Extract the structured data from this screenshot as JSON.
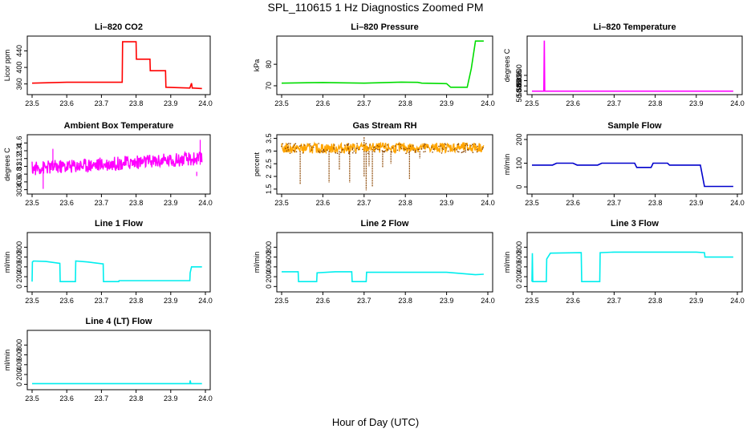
{
  "page": {
    "title": "SPL_110615  1 Hz Diagnostics Zoomed PM",
    "xlabel": "Hour of Day (UTC)"
  },
  "chart_data": [
    {
      "id": "co2",
      "type": "line",
      "title": "Li–820 CO2",
      "ylabel": "Licor ppm",
      "color": "#ff0000",
      "xlim": [
        23.5,
        24.0
      ],
      "ylim": [
        340,
        470
      ],
      "xticks": [
        23.5,
        23.6,
        23.7,
        23.8,
        23.9,
        24.0
      ],
      "yticks": [
        360,
        400,
        440
      ],
      "x": [
        23.5,
        23.6,
        23.76,
        23.761,
        23.8,
        23.801,
        23.84,
        23.841,
        23.885,
        23.886,
        23.955,
        23.96,
        23.962,
        23.965,
        23.99
      ],
      "y": [
        362,
        364,
        364,
        462,
        462,
        420,
        420,
        392,
        392,
        352,
        350,
        362,
        350,
        350,
        349
      ]
    },
    {
      "id": "pressure",
      "type": "line",
      "title": "Li–820 Pressure",
      "ylabel": "kPa",
      "color": "#00dd00",
      "xlim": [
        23.5,
        24.0
      ],
      "ylim": [
        67,
        92
      ],
      "xticks": [
        23.5,
        23.6,
        23.7,
        23.8,
        23.9,
        24.0
      ],
      "yticks": [
        70,
        80
      ],
      "x": [
        23.5,
        23.6,
        23.7,
        23.79,
        23.83,
        23.84,
        23.9,
        23.91,
        23.95,
        23.96,
        23.97,
        23.99
      ],
      "y": [
        71.2,
        71.5,
        71.2,
        71.7,
        71.6,
        71.2,
        71.0,
        69.3,
        69.3,
        78,
        90.8,
        90.8
      ]
    },
    {
      "id": "temp",
      "type": "line",
      "title": "Li–820 Temperature",
      "ylabel": "degrees C",
      "color": "#ff00ff",
      "xlim": [
        23.5,
        24.0
      ],
      "ylim": [
        50.884,
        50.935
      ],
      "xticks": [
        23.5,
        23.6,
        23.7,
        23.8,
        23.9,
        24.0
      ],
      "yticks": [
        50.885,
        50.89,
        50.895,
        50.9
      ],
      "ytick_labels": [
        "50.885",
        "50.890",
        "50.895",
        "50.900"
      ],
      "x": [
        23.5,
        23.529,
        23.53,
        23.531,
        23.99
      ],
      "y": [
        50.885,
        50.885,
        50.933,
        50.885,
        50.885
      ]
    },
    {
      "id": "boxtemp",
      "type": "line",
      "title": "Ambient Box Temperature",
      "ylabel": "degrees C",
      "color": "#ff00ff",
      "xlim": [
        23.5,
        24.0
      ],
      "ylim": [
        30.35,
        31.75
      ],
      "xticks": [
        23.5,
        23.6,
        23.7,
        23.8,
        23.9,
        24.0
      ],
      "yticks": [
        30.4,
        30.6,
        30.8,
        31.0,
        31.2,
        31.4,
        31.6
      ],
      "noise": {
        "start": 23.5,
        "end": 23.99,
        "base_start": 30.95,
        "base_end": 31.2,
        "amp": 0.18,
        "n": 400
      },
      "spikes": [
        {
          "x": 23.532,
          "y": 30.42
        },
        {
          "x": 23.56,
          "y": 31.45
        },
        {
          "x": 23.985,
          "y": 31.68
        },
        {
          "x": 23.975,
          "y": 30.75
        }
      ]
    },
    {
      "id": "rh",
      "type": "line",
      "title": "Gas Stream RH",
      "ylabel": "percent",
      "color": "#ffa500",
      "color2": "#8b4500",
      "xlim": [
        23.5,
        24.0
      ],
      "ylim": [
        1.4,
        3.55
      ],
      "xticks": [
        23.5,
        23.6,
        23.7,
        23.8,
        23.9,
        24.0
      ],
      "yticks": [
        1.5,
        2.0,
        2.5,
        3.0,
        3.5
      ],
      "noise": {
        "start": 23.5,
        "end": 23.99,
        "base_start": 3.1,
        "base_end": 3.15,
        "amp": 0.2,
        "n": 400
      },
      "spikes": [
        {
          "x": 23.545,
          "y": 1.7
        },
        {
          "x": 23.615,
          "y": 1.75
        },
        {
          "x": 23.64,
          "y": 2.25
        },
        {
          "x": 23.665,
          "y": 1.75
        },
        {
          "x": 23.7,
          "y": 2.0
        },
        {
          "x": 23.705,
          "y": 1.45
        },
        {
          "x": 23.712,
          "y": 2.4
        },
        {
          "x": 23.72,
          "y": 1.6
        },
        {
          "x": 23.745,
          "y": 2.35
        },
        {
          "x": 23.765,
          "y": 2.5
        },
        {
          "x": 23.81,
          "y": 1.9
        },
        {
          "x": 23.835,
          "y": 2.7
        },
        {
          "x": 23.7,
          "y": 3.55
        }
      ]
    },
    {
      "id": "sampleflow",
      "type": "line",
      "title": "Sample Flow",
      "ylabel": "ml/min",
      "color": "#0000cc",
      "xlim": [
        23.5,
        24.0
      ],
      "ylim": [
        -20,
        210
      ],
      "xticks": [
        23.5,
        23.6,
        23.7,
        23.8,
        23.9,
        24.0
      ],
      "yticks": [
        0,
        100,
        200
      ],
      "x": [
        23.5,
        23.55,
        23.56,
        23.6,
        23.61,
        23.66,
        23.67,
        23.75,
        23.755,
        23.79,
        23.795,
        23.83,
        23.835,
        23.91,
        23.92,
        23.99
      ],
      "y": [
        92,
        92,
        100,
        100,
        92,
        92,
        100,
        100,
        82,
        82,
        100,
        100,
        92,
        92,
        2,
        2
      ]
    },
    {
      "id": "line1",
      "type": "line",
      "title": "Line 1 Flow",
      "ylabel": "ml/min",
      "color": "#00eeee",
      "xlim": [
        23.5,
        24.0
      ],
      "ylim": [
        -60,
        1050
      ],
      "xticks": [
        23.5,
        23.6,
        23.7,
        23.8,
        23.9,
        24.0
      ],
      "yticks": [
        0,
        200,
        400,
        600,
        800
      ],
      "x": [
        23.5,
        23.501,
        23.504,
        23.54,
        23.58,
        23.581,
        23.625,
        23.626,
        23.66,
        23.705,
        23.706,
        23.75,
        23.751,
        23.955,
        23.956,
        23.96,
        23.99
      ],
      "y": [
        100,
        500,
        520,
        510,
        470,
        100,
        100,
        520,
        500,
        460,
        100,
        100,
        120,
        120,
        280,
        400,
        400
      ]
    },
    {
      "id": "line2",
      "type": "line",
      "title": "Line 2 Flow",
      "ylabel": "ml/min",
      "color": "#00eeee",
      "xlim": [
        23.5,
        24.0
      ],
      "ylim": [
        -60,
        1050
      ],
      "xticks": [
        23.5,
        23.6,
        23.7,
        23.8,
        23.9,
        24.0
      ],
      "yticks": [
        0,
        200,
        400,
        600,
        800
      ],
      "x": [
        23.5,
        23.54,
        23.541,
        23.585,
        23.586,
        23.63,
        23.67,
        23.671,
        23.705,
        23.706,
        23.9,
        23.97,
        23.99
      ],
      "y": [
        300,
        300,
        100,
        100,
        280,
        300,
        300,
        100,
        100,
        290,
        290,
        240,
        250
      ]
    },
    {
      "id": "line3",
      "type": "line",
      "title": "Line 3 Flow",
      "ylabel": "ml/min",
      "color": "#00eeee",
      "xlim": [
        23.5,
        24.0
      ],
      "ylim": [
        -60,
        1050
      ],
      "xticks": [
        23.5,
        23.6,
        23.7,
        23.8,
        23.9,
        24.0
      ],
      "yticks": [
        0,
        200,
        400,
        600,
        800
      ],
      "x": [
        23.5,
        23.501,
        23.502,
        23.535,
        23.536,
        23.545,
        23.62,
        23.621,
        23.665,
        23.666,
        23.7,
        23.9,
        23.92,
        23.921,
        23.99
      ],
      "y": [
        100,
        680,
        100,
        100,
        560,
        680,
        690,
        100,
        100,
        690,
        700,
        700,
        690,
        600,
        600
      ]
    },
    {
      "id": "line4",
      "type": "line",
      "title": "Line 4 (LT) Flow",
      "ylabel": "ml/min",
      "color": "#00eeee",
      "xlim": [
        23.5,
        24.0
      ],
      "ylim": [
        -60,
        1050
      ],
      "xticks": [
        23.5,
        23.6,
        23.7,
        23.8,
        23.9,
        24.0
      ],
      "yticks": [
        0,
        200,
        400,
        600,
        800
      ],
      "x": [
        23.5,
        23.955,
        23.956,
        23.958,
        23.96,
        23.99
      ],
      "y": [
        15,
        15,
        80,
        15,
        15,
        15
      ]
    }
  ]
}
